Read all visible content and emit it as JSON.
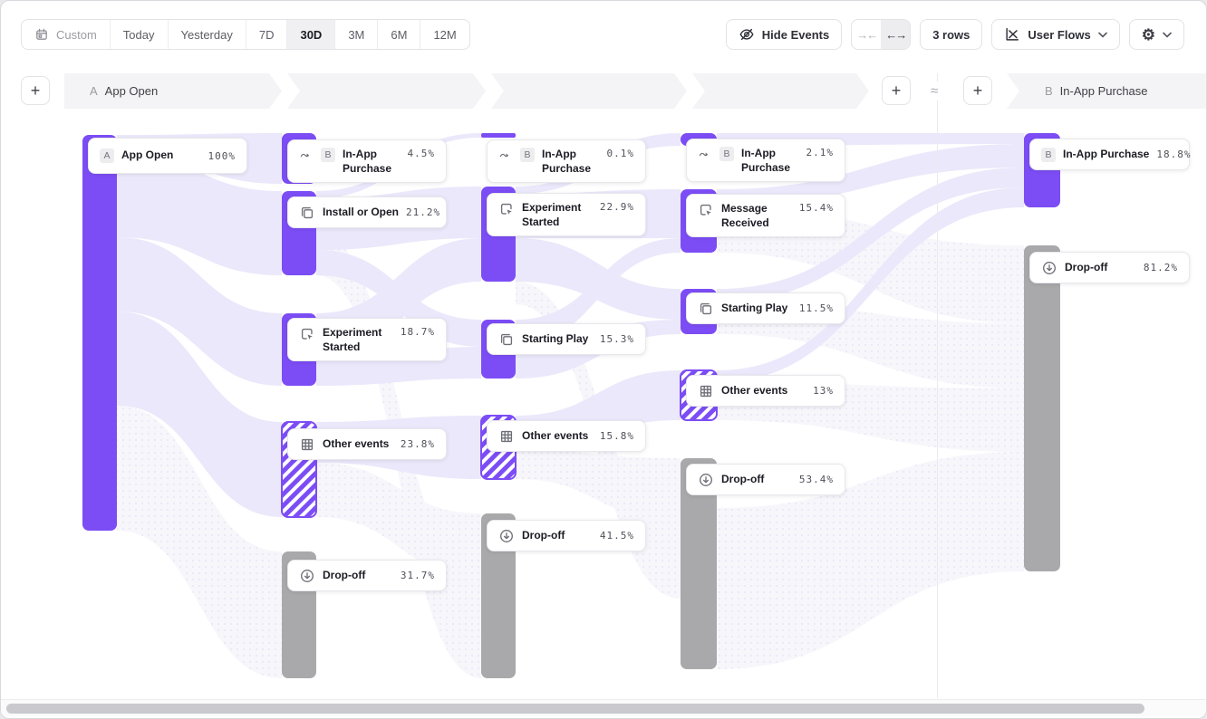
{
  "toolbar": {
    "date_ranges": [
      {
        "label": "Custom",
        "icon": "calendar",
        "selected": false
      },
      {
        "label": "Today",
        "selected": false
      },
      {
        "label": "Yesterday",
        "selected": false
      },
      {
        "label": "7D",
        "selected": false
      },
      {
        "label": "30D",
        "selected": true
      },
      {
        "label": "3M",
        "selected": false
      },
      {
        "label": "6M",
        "selected": false
      },
      {
        "label": "12M",
        "selected": false
      }
    ],
    "hide_events_label": "Hide Events",
    "rows_label": "3 rows",
    "view_selector_label": "User Flows",
    "approx_symbol": "≈",
    "collapse_glyph": "→←",
    "expand_glyph": "←→",
    "plus_glyph": "+",
    "gear_glyph": "⚙"
  },
  "flow_header": {
    "left_badge": "A",
    "left_title": "App Open",
    "right_badge": "B",
    "right_title": "In-App Purchase"
  },
  "colors": {
    "purple": "#7C4DF5",
    "gray_bar": "#a9a9ab",
    "ribbon_light": "#ebe8fb",
    "ribbon_faint": "#f7f6fb"
  },
  "chart_data": {
    "type": "sankey",
    "title": "User Flows from App Open (A) to In-App Purchase (B), 30D",
    "start_event": "App Open",
    "end_event": "In-App Purchase",
    "columns": [
      {
        "step": "start",
        "nodes": [
          {
            "label": "App Open",
            "pct": "100%",
            "badge": "A",
            "icon": null,
            "jump": false,
            "kind": "start"
          }
        ]
      },
      {
        "step": "1",
        "nodes": [
          {
            "label": "In-App Purchase",
            "pct": "4.5%",
            "badge": "B",
            "icon": null,
            "jump": true,
            "kind": "end-event"
          },
          {
            "label": "Install or Open",
            "pct": "21.2%",
            "badge": null,
            "icon": "copy",
            "jump": false,
            "kind": "event"
          },
          {
            "label": "Experiment Started",
            "pct": "18.7%",
            "badge": null,
            "icon": "click",
            "jump": false,
            "kind": "event"
          },
          {
            "label": "Other events",
            "pct": "23.8%",
            "badge": null,
            "icon": "grid",
            "jump": false,
            "kind": "other"
          },
          {
            "label": "Drop-off",
            "pct": "31.7%",
            "badge": null,
            "icon": "dropoff",
            "jump": false,
            "kind": "dropoff"
          }
        ]
      },
      {
        "step": "2",
        "nodes": [
          {
            "label": "In-App Purchase",
            "pct": "0.1%",
            "badge": "B",
            "icon": null,
            "jump": true,
            "kind": "end-event"
          },
          {
            "label": "Experiment Started",
            "pct": "22.9%",
            "badge": null,
            "icon": "click",
            "jump": false,
            "kind": "event"
          },
          {
            "label": "Starting Play",
            "pct": "15.3%",
            "badge": null,
            "icon": "copy",
            "jump": false,
            "kind": "event"
          },
          {
            "label": "Other events",
            "pct": "15.8%",
            "badge": null,
            "icon": "grid",
            "jump": false,
            "kind": "other"
          },
          {
            "label": "Drop-off",
            "pct": "41.5%",
            "badge": null,
            "icon": "dropoff",
            "jump": false,
            "kind": "dropoff"
          }
        ]
      },
      {
        "step": "3",
        "nodes": [
          {
            "label": "In-App Purchase",
            "pct": "2.1%",
            "badge": "B",
            "icon": null,
            "jump": true,
            "kind": "end-event"
          },
          {
            "label": "Message Received",
            "pct": "15.4%",
            "badge": null,
            "icon": "click",
            "jump": false,
            "kind": "event"
          },
          {
            "label": "Starting Play",
            "pct": "11.5%",
            "badge": null,
            "icon": "copy",
            "jump": false,
            "kind": "event"
          },
          {
            "label": "Other events",
            "pct": "13%",
            "badge": null,
            "icon": "grid",
            "jump": false,
            "kind": "other"
          },
          {
            "label": "Drop-off",
            "pct": "53.4%",
            "badge": null,
            "icon": "dropoff",
            "jump": false,
            "kind": "dropoff"
          }
        ]
      },
      {
        "step": "end",
        "nodes": [
          {
            "label": "In-App Purchase",
            "pct": "18.8%",
            "badge": "B",
            "icon": null,
            "jump": false,
            "kind": "end-event"
          },
          {
            "label": "Drop-off",
            "pct": "81.2%",
            "badge": null,
            "icon": "dropoff",
            "jump": false,
            "kind": "dropoff"
          }
        ]
      }
    ]
  }
}
